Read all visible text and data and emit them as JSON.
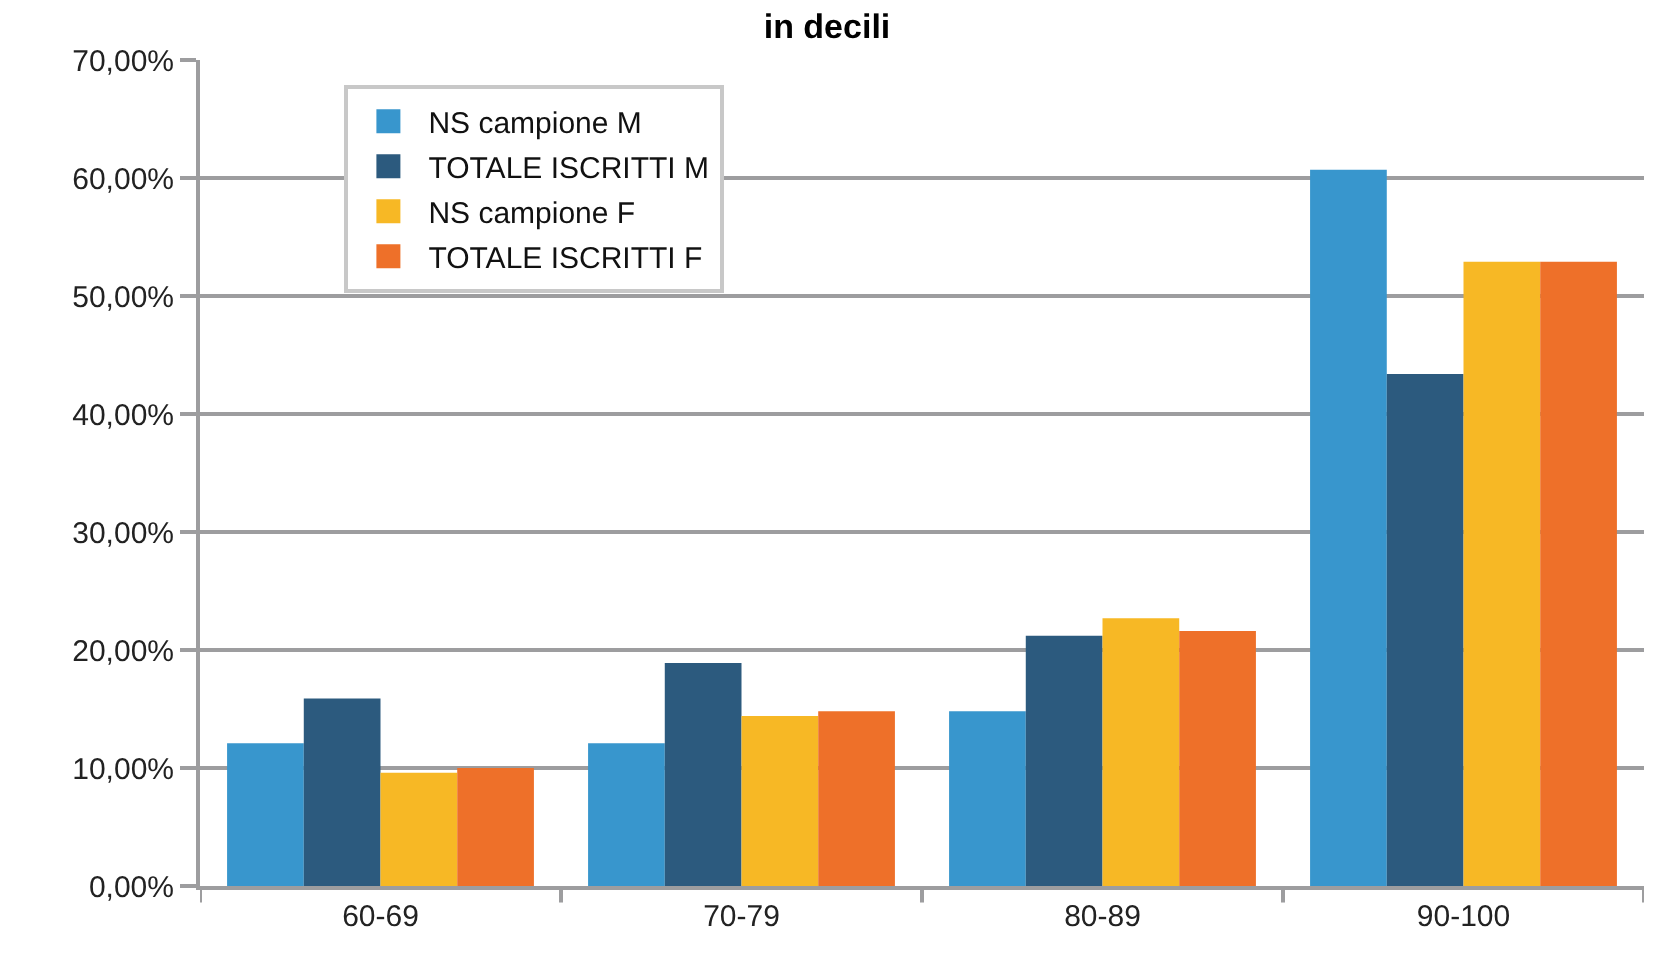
{
  "chart_data": {
    "type": "bar",
    "title": "in decili",
    "categories": [
      "60-69",
      "70-79",
      "80-89",
      "90-100"
    ],
    "series": [
      {
        "name": "NS campione M",
        "color": "#3896cd",
        "values": [
          12.1,
          12.1,
          14.8,
          60.7
        ]
      },
      {
        "name": "TOTALE ISCRITTI M",
        "color": "#2c5a7e",
        "values": [
          15.9,
          18.9,
          21.2,
          43.4
        ]
      },
      {
        "name": "NS campione F",
        "color": "#f7b825",
        "values": [
          9.6,
          14.4,
          22.7,
          52.9
        ]
      },
      {
        "name": "TOTALE ISCRITTI F",
        "color": "#ee7029",
        "values": [
          10.0,
          14.8,
          21.6,
          52.9
        ]
      }
    ],
    "ylim": [
      0,
      70
    ],
    "yticks": [
      {
        "value": 0,
        "label": "0,00%"
      },
      {
        "value": 10,
        "label": "10,00%"
      },
      {
        "value": 20,
        "label": "20,00%"
      },
      {
        "value": 30,
        "label": "30,00%"
      },
      {
        "value": 40,
        "label": "40,00%"
      },
      {
        "value": 50,
        "label": "50,00%"
      },
      {
        "value": 60,
        "label": "60,00%"
      },
      {
        "value": 70,
        "label": "70,00%"
      }
    ],
    "grid": "y",
    "legend": "top left"
  }
}
